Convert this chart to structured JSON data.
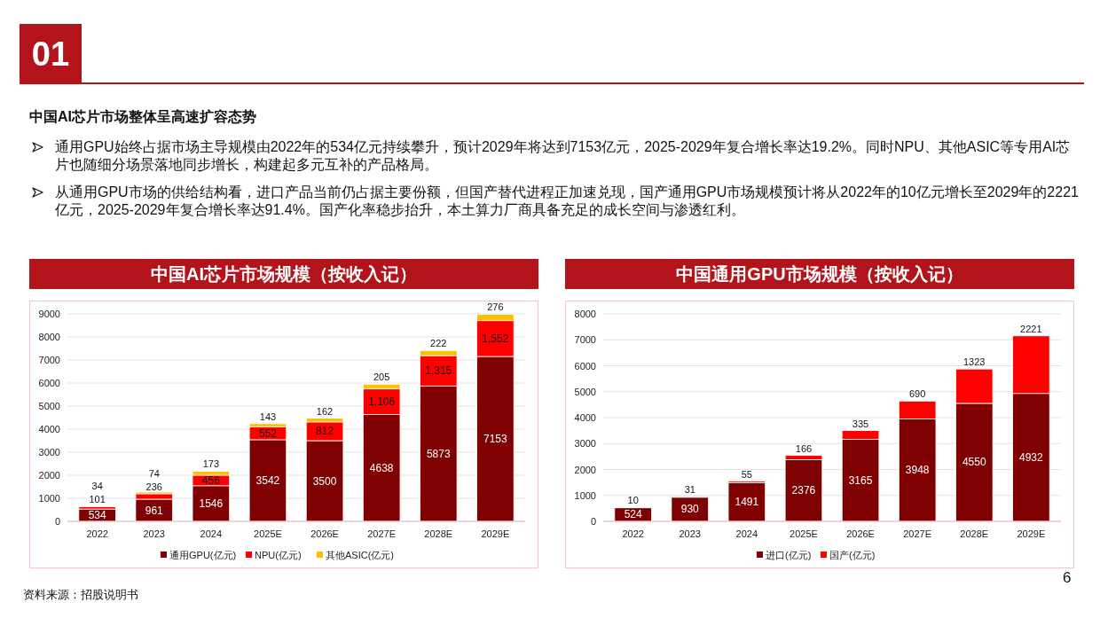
{
  "chart_data": [
    {
      "type": "other",
      "title": "中国AI芯片市场整体呈高速扩容态势",
      "annotations": [
        "01",
        "通用GPU始终占据市场主导规模由2022年的534亿元持续攀升，预计2029年将达到7153亿元，2025-2029年复合增长率达19.2%。同时NPU、其他ASIC等专用AI芯片也随细分场景落地同步增长，构建起多元互补的产品格局。",
        "从通用GPU市场的供给结构看，进口产品当前仍占据主要份额，但国产替代进程正加速兑现，国产通用GPU市场规模预计将从2022年的10亿元增长至2029年的2221亿元，2025-2029年复合增长率达91.4%。国产化率稳步抬升，本土算力厂商具备充足的成长空间与渗透红利。",
        "资料来源：招股说明书",
        "6"
      ]
    },
    {
      "type": "bar",
      "title": "中国AI芯片市场规模（按收入记）",
      "stacked": true,
      "categories": [
        "2022",
        "2023",
        "2024",
        "2025E",
        "2026E",
        "2027E",
        "2028E",
        "2029E"
      ],
      "series": [
        {
          "name": "通用GPU(亿元)",
          "color": "#7f0000",
          "values": [
            534,
            961,
            1546,
            3542,
            3500,
            4638,
            5873,
            7153
          ],
          "value_labels": [
            "534",
            "961",
            "1546",
            "3542",
            "3500",
            "4638",
            "5873",
            "7153"
          ]
        },
        {
          "name": "NPU(亿元)",
          "color": "#ff0000",
          "values": [
            101,
            236,
            456,
            552,
            812,
            1106,
            1315,
            1552
          ],
          "value_labels": [
            "101",
            "236",
            "456",
            "552",
            "812",
            "1,106",
            "1,315",
            "1,552"
          ]
        },
        {
          "name": "其他ASIC(亿元)",
          "color": "#ffc000",
          "values": [
            34,
            74,
            173,
            143,
            162,
            205,
            222,
            276
          ],
          "value_labels": [
            "34",
            "74",
            "173",
            "143",
            "162",
            "205",
            "222",
            "276"
          ]
        }
      ],
      "ylim": [
        0,
        9000
      ],
      "yticks": [
        0,
        1000,
        2000,
        3000,
        4000,
        5000,
        6000,
        7000,
        8000,
        9000
      ],
      "grid": "y",
      "legend": "bottom"
    },
    {
      "type": "bar",
      "title": "中国通用GPU市场规模（按收入记）",
      "stacked": true,
      "categories": [
        "2022",
        "2023",
        "2024",
        "2025E",
        "2026E",
        "2027E",
        "2028E",
        "2029E"
      ],
      "series": [
        {
          "name": "进口(亿元)",
          "color": "#7f0000",
          "values": [
            524,
            930,
            1491,
            2376,
            3165,
            3948,
            4550,
            4932
          ],
          "value_labels": [
            "524",
            "930",
            "1491",
            "2376",
            "3165",
            "3948",
            "4550",
            "4932"
          ]
        },
        {
          "name": "国产(亿元)",
          "color": "#ff0000",
          "values": [
            10,
            31,
            55,
            166,
            335,
            690,
            1323,
            2221
          ],
          "value_labels": [
            "10",
            "31",
            "55",
            "166",
            "335",
            "690",
            "1323",
            "2221"
          ]
        }
      ],
      "ylim": [
        0,
        8000
      ],
      "yticks": [
        0,
        1000,
        2000,
        3000,
        4000,
        5000,
        6000,
        7000,
        8000
      ],
      "grid": "y",
      "legend": "bottom"
    }
  ]
}
